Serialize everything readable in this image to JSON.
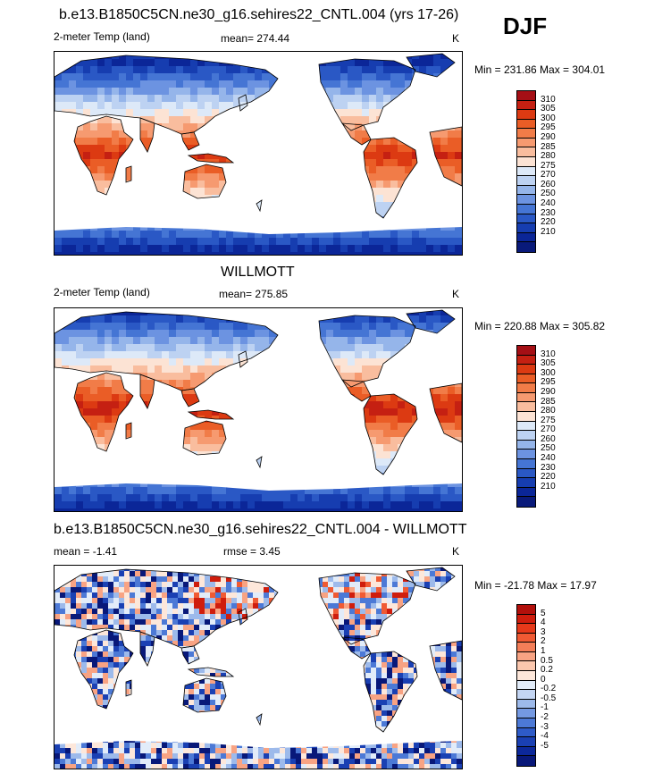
{
  "season": "DJF",
  "panels": [
    {
      "title": "b.e13.B1850C5CN.ne30_g16.sehires22_CNTL.004 (yrs 17-26)",
      "left_label": "2-meter Temp (land)",
      "center_label": "mean= 274.44",
      "units": "K",
      "minmax": "Min = 231.86 Max = 304.01",
      "mode": "abs",
      "colorbar": {
        "colors": [
          "#a50f15",
          "#c52012",
          "#dc3a12",
          "#ea5d26",
          "#f17c48",
          "#f69a70",
          "#f9bd9e",
          "#fce3d4",
          "#dde9f8",
          "#bdd2f2",
          "#95b5ea",
          "#6c93e1",
          "#4575d4",
          "#2a58c5",
          "#163db0",
          "#0b2698",
          "#091a7a"
        ],
        "labels": [
          "310",
          "305",
          "300",
          "295",
          "290",
          "285",
          "280",
          "275",
          "270",
          "260",
          "250",
          "240",
          "230",
          "220",
          "210"
        ]
      }
    },
    {
      "title": "WILLMOTT",
      "left_label": "2-meter Temp (land)",
      "center_label": "mean= 275.85",
      "units": "K",
      "minmax": "Min = 220.88 Max = 305.82",
      "mode": "abs",
      "colorbar": {
        "colors": [
          "#a50f15",
          "#c52012",
          "#dc3a12",
          "#ea5d26",
          "#f17c48",
          "#f69a70",
          "#f9bd9e",
          "#fce3d4",
          "#dde9f8",
          "#bdd2f2",
          "#95b5ea",
          "#6c93e1",
          "#4575d4",
          "#2a58c5",
          "#163db0",
          "#0b2698",
          "#091a7a"
        ],
        "labels": [
          "310",
          "305",
          "300",
          "295",
          "290",
          "285",
          "280",
          "275",
          "270",
          "260",
          "250",
          "240",
          "230",
          "220",
          "210"
        ]
      }
    },
    {
      "title": "b.e13.B1850C5CN.ne30_g16.sehires22_CNTL.004 - WILLMOTT",
      "left_label": "mean =  -1.41",
      "center_label": "rmse =   3.45",
      "units": "K",
      "minmax": "Min = -21.78 Max =  17.97",
      "mode": "diff",
      "colorbar": {
        "colors": [
          "#b2100b",
          "#cf1d0d",
          "#e6391a",
          "#f05a33",
          "#f47e58",
          "#f8a383",
          "#fbc7ae",
          "#fde7da",
          "#e2ecf9",
          "#c3d5f3",
          "#9dbaeb",
          "#7499e2",
          "#4c79d6",
          "#2e5bc8",
          "#1a40b3",
          "#0c289a",
          "#081879"
        ],
        "labels": [
          "5",
          "4",
          "3",
          "2",
          "1",
          "0.5",
          "0.2",
          "0",
          "-0.2",
          "-0.5",
          "-1",
          "-2",
          "-3",
          "-4",
          "-5"
        ]
      }
    }
  ]
}
